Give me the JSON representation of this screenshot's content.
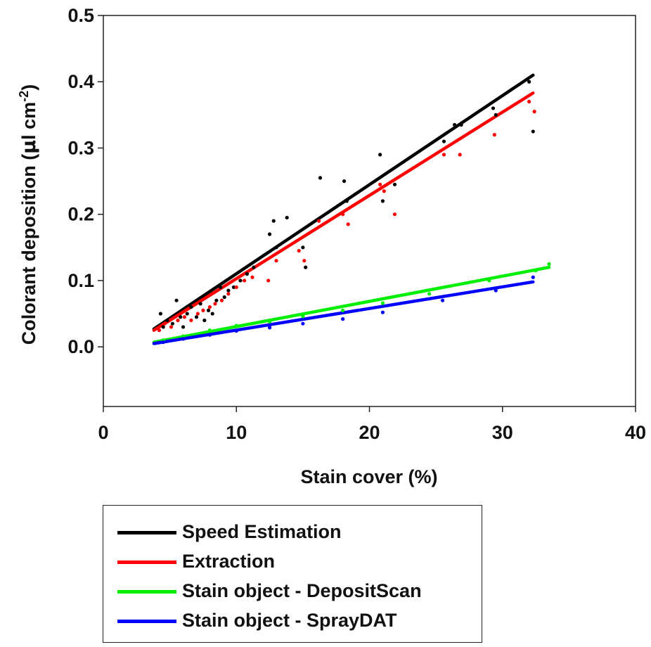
{
  "chart_data": {
    "type": "scatter",
    "xlabel": "Stain cover (%)",
    "ylabel": "Colorant deposition (µl cm-2)",
    "ylabel_parts": {
      "main": "Colorant deposition (",
      "mu": "µ",
      "unit": "l cm",
      "sup": "-2",
      "close": ")"
    },
    "xlim": [
      0,
      40
    ],
    "ylim": [
      -0.09,
      0.5
    ],
    "xticks": [
      "0",
      "10",
      "20",
      "30",
      "40"
    ],
    "xtick_values": [
      0,
      10,
      20,
      30,
      40
    ],
    "yticks": [
      "0.0",
      "0.1",
      "0.2",
      "0.3",
      "0.4",
      "0.5"
    ],
    "ytick_values": [
      0.0,
      0.1,
      0.2,
      0.3,
      0.4,
      0.5
    ],
    "grid": false,
    "legend_placement": "bottom, below plot",
    "series": [
      {
        "name": "Speed Estimation",
        "color": "#000000",
        "fit": {
          "x": [
            3.8,
            32.3
          ],
          "y": [
            0.027,
            0.41
          ]
        },
        "points": [
          [
            4.3,
            0.05
          ],
          [
            4.5,
            0.03
          ],
          [
            4.8,
            0.04
          ],
          [
            5.2,
            0.035
          ],
          [
            5.5,
            0.07
          ],
          [
            5.8,
            0.045
          ],
          [
            6.0,
            0.03
          ],
          [
            6.3,
            0.05
          ],
          [
            6.6,
            0.06
          ],
          [
            7.0,
            0.045
          ],
          [
            7.3,
            0.065
          ],
          [
            7.6,
            0.04
          ],
          [
            7.9,
            0.055
          ],
          [
            8.2,
            0.05
          ],
          [
            8.5,
            0.07
          ],
          [
            8.8,
            0.09
          ],
          [
            9.1,
            0.075
          ],
          [
            9.4,
            0.085
          ],
          [
            9.8,
            0.09
          ],
          [
            10.3,
            0.1
          ],
          [
            10.8,
            0.11
          ],
          [
            11.3,
            0.12
          ],
          [
            12.5,
            0.17
          ],
          [
            12.8,
            0.19
          ],
          [
            13.0,
            0.15
          ],
          [
            13.8,
            0.195
          ],
          [
            15.0,
            0.15
          ],
          [
            15.2,
            0.12
          ],
          [
            16.3,
            0.255
          ],
          [
            18.1,
            0.25
          ],
          [
            18.3,
            0.22
          ],
          [
            20.8,
            0.29
          ],
          [
            21.0,
            0.22
          ],
          [
            21.9,
            0.245
          ],
          [
            25.6,
            0.31
          ],
          [
            26.4,
            0.335
          ],
          [
            26.9,
            0.335
          ],
          [
            29.3,
            0.36
          ],
          [
            29.5,
            0.35
          ],
          [
            32.0,
            0.4
          ],
          [
            32.3,
            0.325
          ]
        ]
      },
      {
        "name": "Extraction",
        "color": "#ff0000",
        "fit": {
          "x": [
            3.8,
            32.3
          ],
          "y": [
            0.025,
            0.383
          ]
        },
        "points": [
          [
            4.2,
            0.025
          ],
          [
            4.6,
            0.035
          ],
          [
            5.1,
            0.03
          ],
          [
            5.6,
            0.04
          ],
          [
            6.1,
            0.045
          ],
          [
            6.6,
            0.04
          ],
          [
            7.1,
            0.05
          ],
          [
            7.5,
            0.055
          ],
          [
            8.0,
            0.06
          ],
          [
            8.4,
            0.065
          ],
          [
            8.9,
            0.07
          ],
          [
            9.4,
            0.08
          ],
          [
            10.0,
            0.09
          ],
          [
            10.6,
            0.1
          ],
          [
            11.2,
            0.105
          ],
          [
            12.4,
            0.1
          ],
          [
            13.0,
            0.13
          ],
          [
            14.7,
            0.145
          ],
          [
            15.1,
            0.13
          ],
          [
            16.2,
            0.19
          ],
          [
            18.0,
            0.2
          ],
          [
            18.4,
            0.185
          ],
          [
            20.8,
            0.245
          ],
          [
            21.1,
            0.235
          ],
          [
            21.9,
            0.2
          ],
          [
            25.6,
            0.29
          ],
          [
            26.8,
            0.29
          ],
          [
            29.4,
            0.32
          ],
          [
            32.0,
            0.37
          ],
          [
            32.4,
            0.355
          ]
        ]
      },
      {
        "name": "Stain object - DepositScan",
        "color": "#00ee00",
        "fit": {
          "x": [
            3.8,
            33.5
          ],
          "y": [
            0.007,
            0.12
          ]
        },
        "points": [
          [
            4.5,
            0.01
          ],
          [
            6.0,
            0.016
          ],
          [
            8.0,
            0.025
          ],
          [
            10.0,
            0.032
          ],
          [
            12.5,
            0.038
          ],
          [
            15.0,
            0.046
          ],
          [
            18.0,
            0.055
          ],
          [
            21.0,
            0.066
          ],
          [
            24.5,
            0.08
          ],
          [
            29.0,
            0.1
          ],
          [
            32.5,
            0.115
          ],
          [
            33.5,
            0.125
          ]
        ]
      },
      {
        "name": "Stain object - SprayDAT",
        "color": "#0000ff",
        "fit": {
          "x": [
            3.8,
            32.3
          ],
          "y": [
            0.005,
            0.098
          ]
        },
        "points": [
          [
            4.5,
            0.007
          ],
          [
            6.0,
            0.012
          ],
          [
            8.0,
            0.018
          ],
          [
            10.0,
            0.024
          ],
          [
            12.5,
            0.029
          ],
          [
            15.0,
            0.035
          ],
          [
            18.0,
            0.042
          ],
          [
            21.0,
            0.052
          ],
          [
            25.5,
            0.07
          ],
          [
            29.5,
            0.085
          ],
          [
            32.3,
            0.105
          ]
        ]
      }
    ]
  }
}
